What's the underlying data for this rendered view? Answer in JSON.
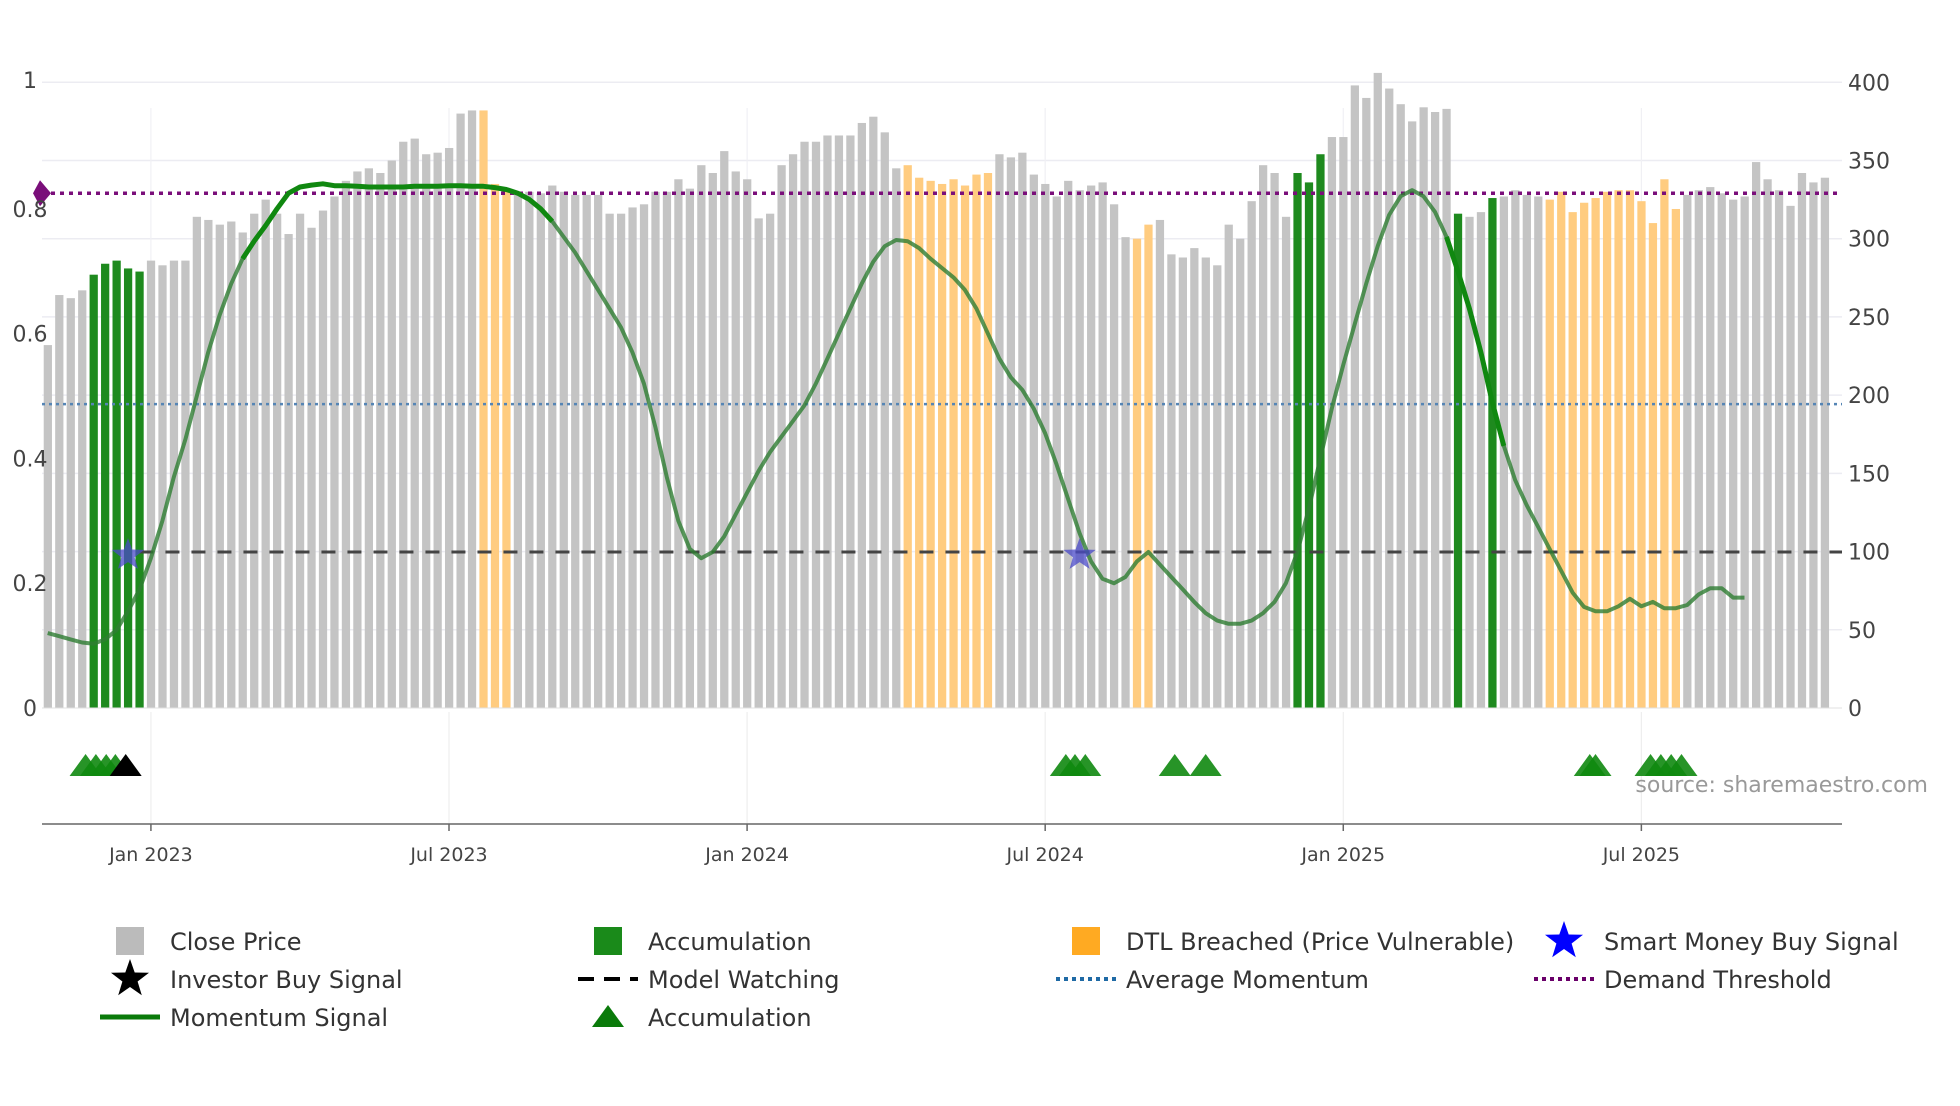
{
  "chart_data": {
    "type": "bar",
    "title": "",
    "source": "source: sharemaestro.com",
    "left_axis": {
      "ticks": [
        "0",
        "0.2",
        "0.4",
        "0.6",
        "0.8",
        "1"
      ],
      "range": [
        0,
        1
      ]
    },
    "right_axis": {
      "ticks": [
        "0",
        "50",
        "100",
        "150",
        "200",
        "250",
        "300",
        "350",
        "400"
      ],
      "range": [
        0,
        420
      ]
    },
    "x_ticks": [
      {
        "label": "Jan 2023",
        "week": 9.5
      },
      {
        "label": "Jul 2023",
        "week": 35.5
      },
      {
        "label": "Jan 2024",
        "week": 61.5
      },
      {
        "label": "Jul 2024",
        "week": 87.5
      },
      {
        "label": "Jan 2025",
        "week": 113.5
      },
      {
        "label": "Jul 2025",
        "week": 139.5
      }
    ],
    "x_range": [
      0,
      157
    ],
    "close_price": [
      232,
      264,
      262,
      267,
      277,
      284,
      286,
      281,
      279,
      286,
      283,
      286,
      286,
      314,
      312,
      309,
      311,
      304,
      316,
      325,
      316,
      303,
      316,
      307,
      318,
      327,
      337,
      343,
      345,
      342,
      350,
      362,
      364,
      354,
      355,
      358,
      380,
      382,
      382,
      335,
      331,
      330,
      330,
      329,
      334,
      330,
      328,
      328,
      328,
      316,
      316,
      320,
      322,
      330,
      330,
      338,
      332,
      347,
      342,
      356,
      343,
      338,
      313,
      316,
      347,
      354,
      362,
      362,
      366,
      366,
      366,
      374,
      378,
      368,
      345,
      347,
      339,
      337,
      335,
      338,
      334,
      341,
      342,
      354,
      352,
      355,
      341,
      335,
      327,
      337,
      331,
      334,
      336,
      322,
      301,
      300,
      309,
      312,
      290,
      288,
      294,
      288,
      283,
      309,
      300,
      324,
      347,
      342,
      314,
      342,
      336,
      354,
      365,
      365,
      398,
      390,
      406,
      396,
      386,
      375,
      384,
      381,
      383,
      316,
      314,
      317,
      326,
      327,
      331,
      328,
      327,
      325,
      330,
      317,
      323,
      326,
      330,
      331,
      331,
      324,
      310,
      338,
      319,
      328,
      331,
      333,
      329,
      325,
      327,
      349,
      338,
      331,
      321,
      342,
      336,
      339
    ],
    "category_codes": "GGGGAAAAAGGGGGGGGGGGGGGGGGGGGGGGGGGGGGDDDGGGGGGGGGGGGGGGGGGGGGGGGGGGGGGGGGGDDDDDDDDGGGGGGGGGGGGDDGGGGGGGGGGGGAAAGGGGGGGGGGGAGGAGGGGDDDDDDDDDDDDGGGGGGGGGGGGGGGGGGGAAGGGGGAAAAAGG",
    "momentum": [
      0.12,
      0.115,
      0.11,
      0.105,
      0.103,
      0.11,
      0.125,
      0.155,
      0.19,
      0.24,
      0.3,
      0.37,
      0.43,
      0.5,
      0.57,
      0.63,
      0.68,
      0.72,
      0.748,
      0.773,
      0.8,
      0.825,
      0.835,
      0.838,
      0.84,
      0.837,
      0.837,
      0.836,
      0.835,
      0.835,
      0.835,
      0.835,
      0.836,
      0.836,
      0.836,
      0.837,
      0.837,
      0.836,
      0.836,
      0.834,
      0.831,
      0.825,
      0.815,
      0.8,
      0.78,
      0.755,
      0.73,
      0.7,
      0.67,
      0.64,
      0.61,
      0.57,
      0.52,
      0.45,
      0.37,
      0.3,
      0.255,
      0.24,
      0.25,
      0.275,
      0.31,
      0.345,
      0.38,
      0.41,
      0.435,
      0.46,
      0.485,
      0.52,
      0.56,
      0.6,
      0.64,
      0.68,
      0.715,
      0.74,
      0.75,
      0.748,
      0.737,
      0.72,
      0.705,
      0.69,
      0.67,
      0.64,
      0.6,
      0.56,
      0.53,
      0.51,
      0.48,
      0.44,
      0.39,
      0.335,
      0.28,
      0.235,
      0.207,
      0.2,
      0.21,
      0.235,
      0.25,
      0.23,
      0.21,
      0.19,
      0.17,
      0.152,
      0.14,
      0.135,
      0.135,
      0.14,
      0.152,
      0.17,
      0.2,
      0.25,
      0.32,
      0.4,
      0.48,
      0.55,
      0.615,
      0.68,
      0.74,
      0.79,
      0.82,
      0.83,
      0.82,
      0.795,
      0.755,
      0.7,
      0.64,
      0.57,
      0.49,
      0.42,
      0.365,
      0.325,
      0.29,
      0.255,
      0.22,
      0.185,
      0.162,
      0.155,
      0.155,
      0.163,
      0.175,
      0.163,
      0.17,
      0.16,
      0.16,
      0.165,
      0.182,
      0.192,
      0.192,
      0.177,
      0.177
    ],
    "model_watching_level": 0.25,
    "average_momentum_level": 0.487,
    "demand_threshold_level": 0.825,
    "smart_money_buy_signals": [
      {
        "week": 7.5,
        "value": 0.245
      },
      {
        "week": 90.5,
        "value": 0.245
      }
    ],
    "accumulation_markers": [
      3.8,
      4.7,
      5.6,
      6.4,
      89.3,
      90.1,
      91,
      98.8,
      101.5,
      135,
      135.5,
      140.3,
      141.2,
      142.1,
      143
    ],
    "investor_buy_markers": [
      7.3
    ],
    "colors": {
      "close_price": "#c4c4c4",
      "accumulation": "#1e8a1e",
      "dtl_breached": "#ffcc80",
      "momentum": "#2e7d32",
      "momentum_bold": "#108810",
      "model_watching": "#444444",
      "average_momentum": "#5585b5",
      "demand_threshold": "#7a0e7a",
      "smart_money": "#4a4ac8",
      "investor_buy": "#000000",
      "accumulation_marker": "#108810"
    },
    "legend": [
      {
        "label": "Close Price",
        "icon": "gray-square-icon",
        "color": "#bbbbbb"
      },
      {
        "label": "Accumulation",
        "icon": "green-square-icon",
        "color": "#1a8a1a"
      },
      {
        "label": "DTL Breached (Price Vulnerable)",
        "icon": "orange-square-icon",
        "color": "#ffaa22"
      },
      {
        "label": "Smart Money Buy Signal",
        "icon": "blue-star-icon",
        "color": "#0000ff"
      },
      {
        "label": "Investor Buy Signal",
        "icon": "black-star-icon",
        "color": "#000000"
      },
      {
        "label": "Model Watching",
        "icon": "dashed-line-icon",
        "color": "#000000"
      },
      {
        "label": "Average Momentum",
        "icon": "dotted-line-icon",
        "color": "#1f6aa5"
      },
      {
        "label": "Demand Threshold",
        "icon": "purple-dotted-line-icon",
        "color": "#6a006a"
      },
      {
        "label": "Momentum Signal",
        "icon": "green-line-icon",
        "color": "#0a7a0a"
      },
      {
        "label": "Accumulation",
        "icon": "green-triangle-icon",
        "color": "#0a7a0a"
      }
    ]
  }
}
